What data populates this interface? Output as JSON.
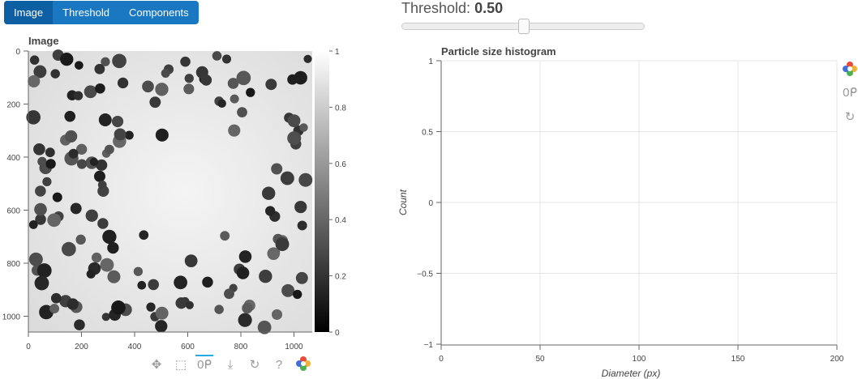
{
  "tabs": [
    {
      "label": "Image",
      "active": true
    },
    {
      "label": "Threshold",
      "active": false
    },
    {
      "label": "Components",
      "active": false
    }
  ],
  "image_panel": {
    "title": "Image",
    "x_ticks": [
      "0",
      "200",
      "400",
      "600",
      "800",
      "1000"
    ],
    "y_ticks": [
      "0",
      "200",
      "400",
      "600",
      "800",
      "1000"
    ],
    "colorbar_ticks": [
      "1",
      "0.8",
      "0.6",
      "0.4",
      "0.2",
      "0"
    ]
  },
  "threshold": {
    "label": "Threshold:",
    "value": "0.50",
    "fraction": 0.5
  },
  "histogram": {
    "title": "Particle size histogram",
    "xlabel": "Diameter (px)",
    "ylabel": "Count",
    "x_ticks": [
      "0",
      "50",
      "100",
      "150",
      "200"
    ],
    "y_ticks": [
      "1",
      "0.5",
      "0",
      "−0.5",
      "−1"
    ]
  },
  "toolbar_icons": [
    "pan-icon",
    "box-zoom-icon",
    "wheel-zoom-icon",
    "save-icon",
    "reset-icon",
    "help-icon",
    "bokeh-logo-icon"
  ],
  "colors": {
    "tab_bg": "#1a78c2",
    "tab_active": "#0d5fa3",
    "grid": "#e5e5e5"
  }
}
